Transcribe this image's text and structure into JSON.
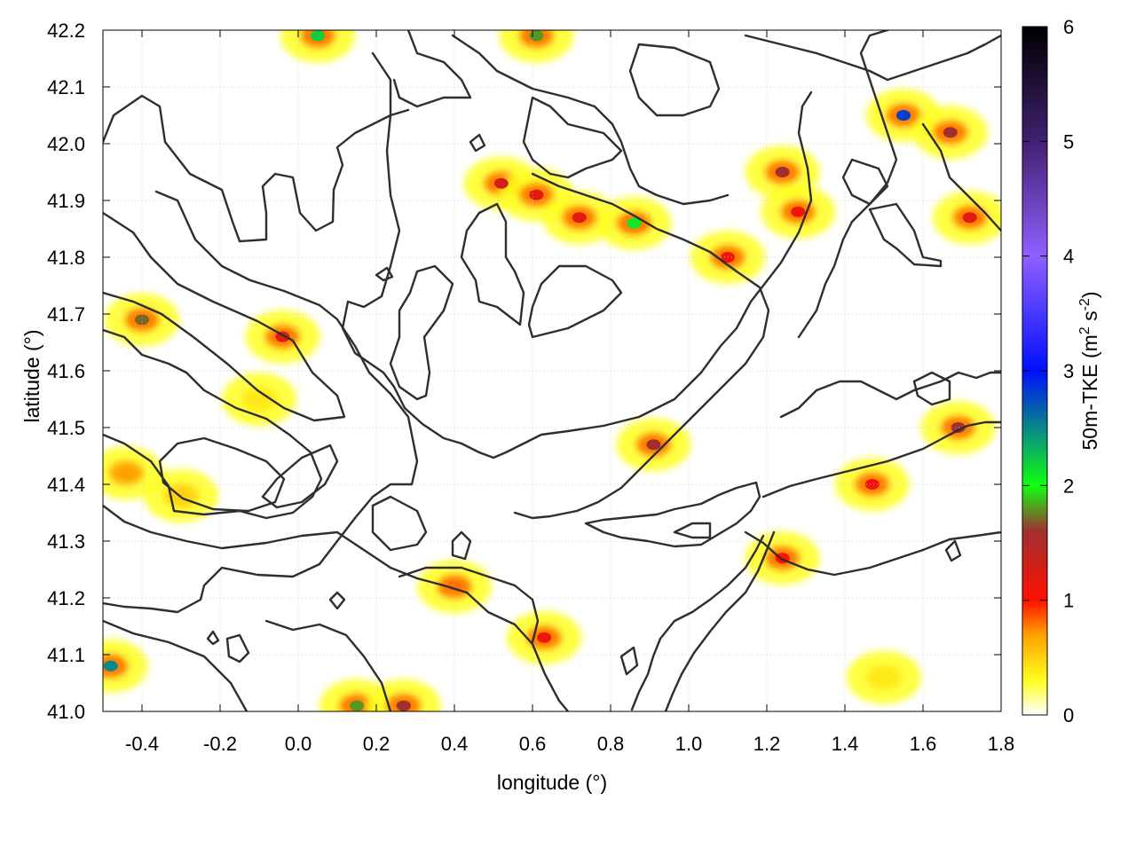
{
  "chart_data": {
    "type": "heatmap",
    "title": "",
    "xlabel": "longitude (°)",
    "ylabel": "latitude (°)",
    "xlim": [
      -0.5,
      1.8
    ],
    "ylim": [
      41.0,
      42.2
    ],
    "x_ticks": [
      -0.4,
      -0.2,
      0.0,
      0.2,
      0.4,
      0.6,
      0.8,
      1.0,
      1.2,
      1.4,
      1.6,
      1.8
    ],
    "x_tick_labels": [
      "-0.4",
      "-0.2",
      "0.0",
      "0.2",
      "0.4",
      "0.6",
      "0.8",
      "1.0",
      "1.2",
      "1.4",
      "1.6",
      "1.8"
    ],
    "y_ticks": [
      41.0,
      41.1,
      41.2,
      41.3,
      41.4,
      41.5,
      41.6,
      41.7,
      41.8,
      41.9,
      42.0,
      42.1,
      42.2
    ],
    "y_tick_labels": [
      "41.0",
      "41.1",
      "41.2",
      "41.3",
      "41.4",
      "41.5",
      "41.6",
      "41.7",
      "41.8",
      "41.9",
      "42.0",
      "42.1",
      "42.2"
    ],
    "grid": true,
    "colorbar": {
      "label": "50m-TKE (m",
      "label_sup1": "2",
      "label_mid": " s",
      "label_sup2": "-2",
      "label_end": ")",
      "range": [
        0,
        6
      ],
      "ticks": [
        0,
        1,
        2,
        3,
        4,
        5,
        6
      ],
      "tick_labels": [
        "0",
        "1",
        "2",
        "3",
        "4",
        "5",
        "6"
      ],
      "colorscale": [
        {
          "value": 0.0,
          "color": "#ffffff"
        },
        {
          "value": 0.3,
          "color": "#ffff20"
        },
        {
          "value": 0.7,
          "color": "#ffa000"
        },
        {
          "value": 1.0,
          "color": "#ff1000"
        },
        {
          "value": 1.6,
          "color": "#a03030"
        },
        {
          "value": 2.0,
          "color": "#10ff10"
        },
        {
          "value": 3.0,
          "color": "#0010ff"
        },
        {
          "value": 4.0,
          "color": "#9060ff"
        },
        {
          "value": 5.0,
          "color": "#402070"
        },
        {
          "value": 6.0,
          "color": "#000000"
        }
      ]
    },
    "tke_hotspots": [
      {
        "lon": -0.4,
        "lat": 41.69,
        "tke": 1.7
      },
      {
        "lon": -0.04,
        "lat": 41.66,
        "tke": 1.2
      },
      {
        "lon": -0.44,
        "lat": 41.42,
        "tke": 0.7
      },
      {
        "lon": -0.3,
        "lat": 41.38,
        "tke": 0.5
      },
      {
        "lon": -0.1,
        "lat": 41.55,
        "tke": 0.4
      },
      {
        "lon": 0.52,
        "lat": 41.93,
        "tke": 1.3
      },
      {
        "lon": 0.61,
        "lat": 41.91,
        "tke": 1.2
      },
      {
        "lon": 0.72,
        "lat": 41.87,
        "tke": 1.2
      },
      {
        "lon": 0.86,
        "lat": 41.86,
        "tke": 2.1
      },
      {
        "lon": 1.24,
        "lat": 41.95,
        "tke": 1.6
      },
      {
        "lon": 1.28,
        "lat": 41.88,
        "tke": 1.1
      },
      {
        "lon": 1.1,
        "lat": 41.8,
        "tke": 1.1
      },
      {
        "lon": 1.55,
        "lat": 42.05,
        "tke": 2.8
      },
      {
        "lon": 1.67,
        "lat": 42.02,
        "tke": 1.6
      },
      {
        "lon": 1.72,
        "lat": 41.87,
        "tke": 1.2
      },
      {
        "lon": 0.91,
        "lat": 41.47,
        "tke": 1.6
      },
      {
        "lon": 1.47,
        "lat": 41.4,
        "tke": 1.1
      },
      {
        "lon": 1.69,
        "lat": 41.5,
        "tke": 1.6
      },
      {
        "lon": 1.24,
        "lat": 41.27,
        "tke": 1.0
      },
      {
        "lon": 0.63,
        "lat": 41.13,
        "tke": 1.1
      },
      {
        "lon": 0.4,
        "lat": 41.22,
        "tke": 0.8
      },
      {
        "lon": 1.5,
        "lat": 41.06,
        "tke": 0.4
      },
      {
        "lon": -0.48,
        "lat": 41.08,
        "tke": 2.5
      },
      {
        "lon": 0.05,
        "lat": 42.19,
        "tke": 2.2
      },
      {
        "lon": 0.61,
        "lat": 42.19,
        "tke": 1.8
      },
      {
        "lon": 0.15,
        "lat": 41.01,
        "tke": 1.8
      },
      {
        "lon": 0.27,
        "lat": 41.01,
        "tke": 1.6
      }
    ],
    "contour_lines": "terrain elevation isolines (unlabeled)"
  }
}
